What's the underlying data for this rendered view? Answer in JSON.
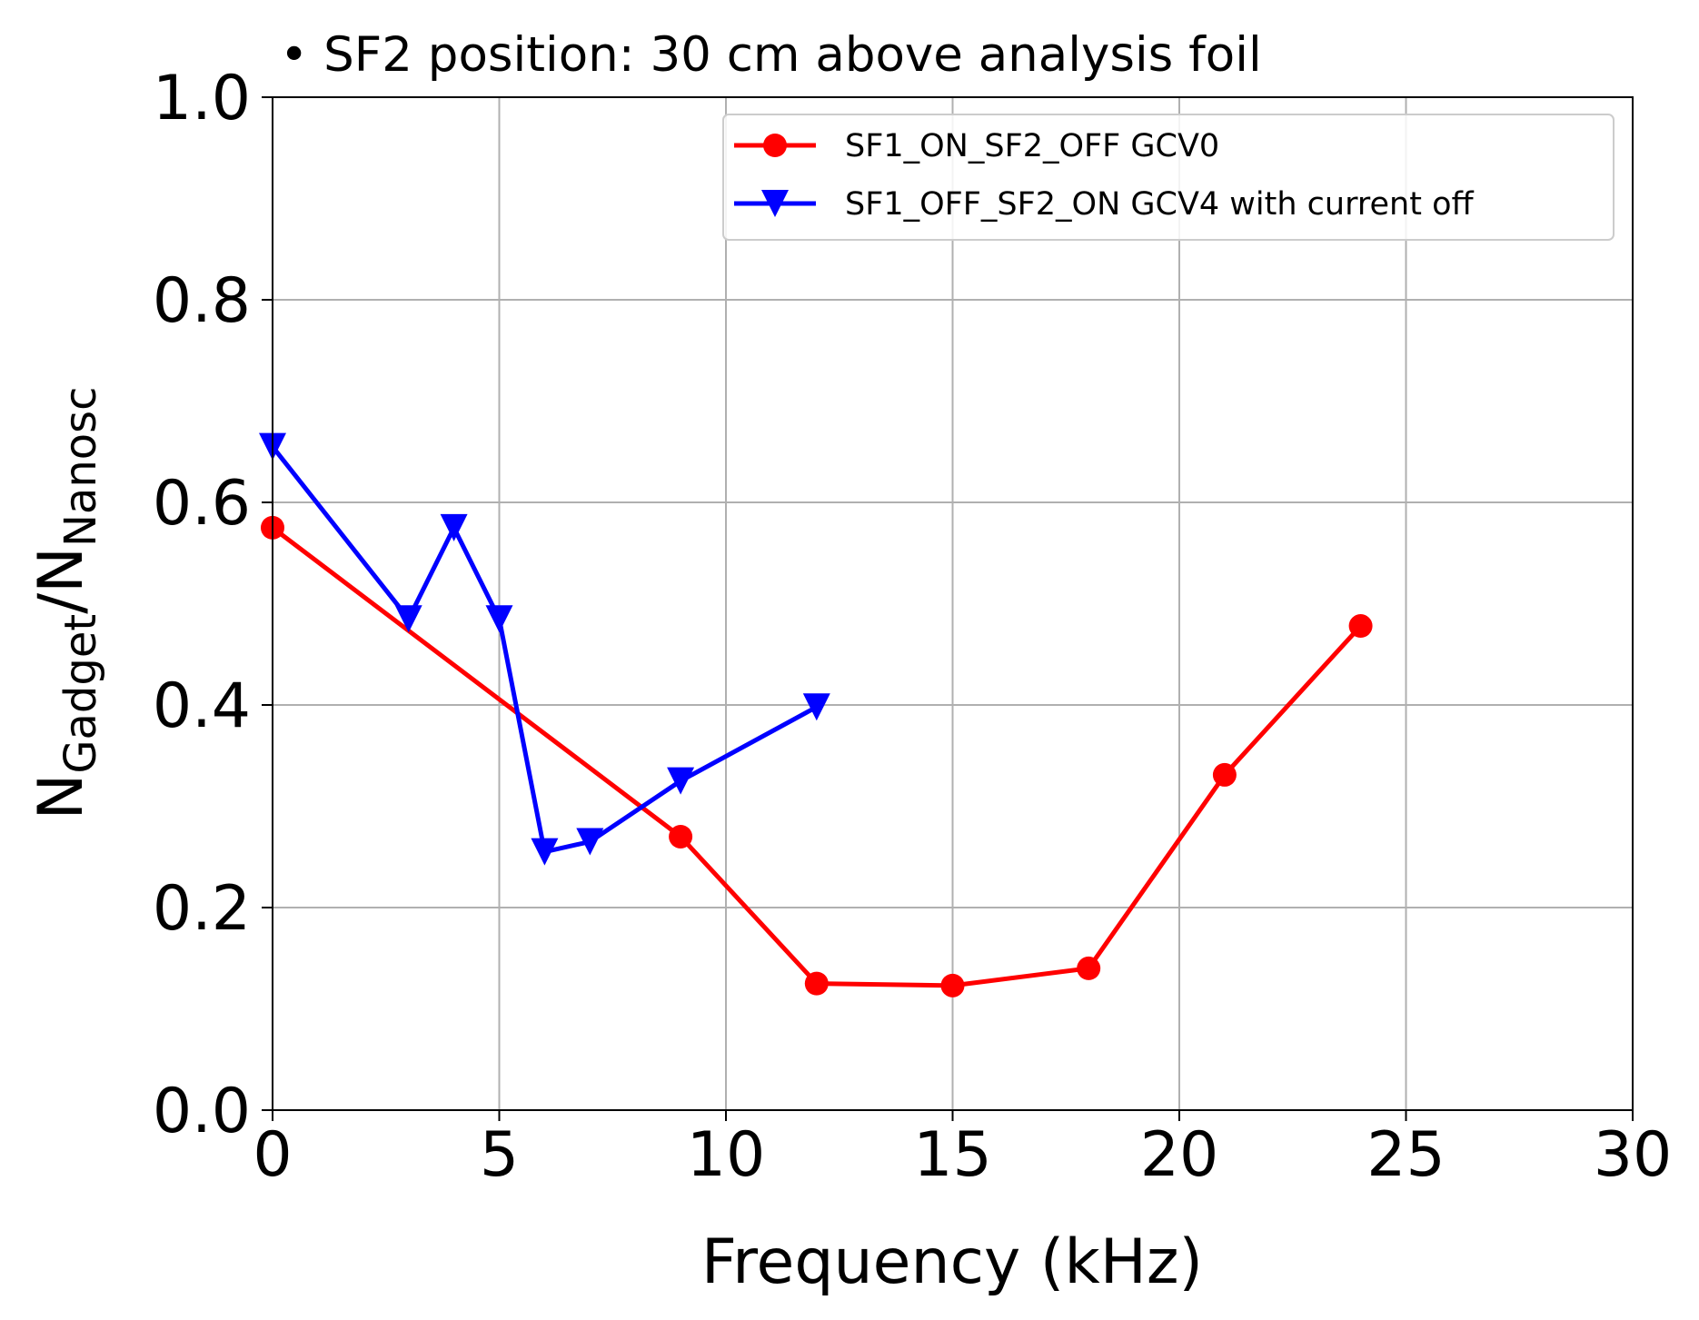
{
  "chart_data": {
    "type": "line",
    "title": "• SF2 position: 30 cm above analysis foil",
    "xlabel": "Frequency (kHz)",
    "ylabel": {
      "base1": "N",
      "sub1": "Gadget",
      "sep": "/",
      "base2": "N",
      "sub2": "Nanosc"
    },
    "xlim": [
      0,
      30
    ],
    "ylim": [
      0.0,
      1.0
    ],
    "x_ticks": [
      0,
      5,
      10,
      15,
      20,
      25,
      30
    ],
    "x_tick_labels": [
      "0",
      "5",
      "10",
      "15",
      "20",
      "25",
      "30"
    ],
    "y_ticks": [
      0.0,
      0.2,
      0.4,
      0.6,
      0.8,
      1.0
    ],
    "y_tick_labels": [
      "0.0",
      "0.2",
      "0.4",
      "0.6",
      "0.8",
      "1.0"
    ],
    "grid": true,
    "legend_position": "top-right",
    "series": [
      {
        "name": "SF1_ON_SF2_OFF GCV0",
        "color": "#ff0000",
        "marker": "circle",
        "x": [
          0,
          9,
          12,
          15,
          18,
          21,
          24
        ],
        "y": [
          0.575,
          0.27,
          0.125,
          0.123,
          0.14,
          0.331,
          0.478
        ]
      },
      {
        "name": "SF1_OFF_SF2_ON GCV4 with current off",
        "color": "#0000ff",
        "marker": "triangle-down",
        "x": [
          0,
          3,
          4,
          5,
          6,
          7,
          9,
          12
        ],
        "y": [
          0.655,
          0.485,
          0.575,
          0.485,
          0.255,
          0.265,
          0.325,
          0.398
        ]
      }
    ]
  }
}
